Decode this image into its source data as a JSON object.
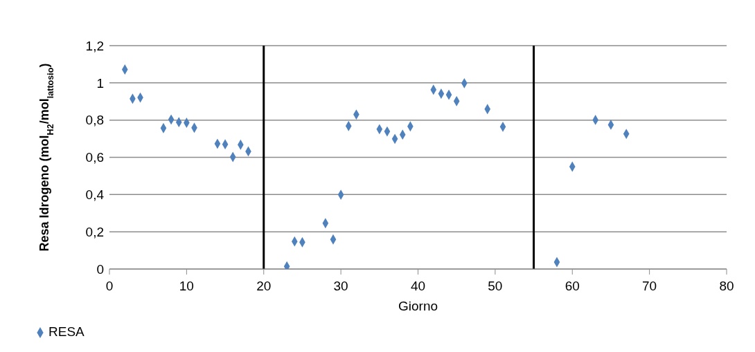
{
  "chart_data": {
    "type": "scatter",
    "xlabel": "Giorno",
    "ylabel": "Resa Idrogeno (mol$_{H2}$/mol$_{lattosio}$)",
    "series": [
      {
        "name": "RESA",
        "color": "#4f81bd",
        "x": [
          2,
          3,
          4,
          7,
          8,
          9,
          10,
          11,
          14,
          15,
          16,
          17,
          18,
          23,
          24,
          25,
          28,
          29,
          30,
          31,
          32,
          35,
          36,
          37,
          38,
          39,
          42,
          43,
          44,
          45,
          46,
          49,
          51,
          58,
          60,
          63,
          65,
          67
        ],
        "values": [
          1.072,
          0.915,
          0.921,
          0.757,
          0.803,
          0.789,
          0.786,
          0.759,
          0.673,
          0.67,
          0.602,
          0.668,
          0.632,
          0.014,
          0.148,
          0.144,
          0.246,
          0.159,
          0.399,
          0.768,
          0.83,
          0.751,
          0.739,
          0.699,
          0.722,
          0.766,
          0.963,
          0.942,
          0.936,
          0.902,
          0.998,
          0.859,
          0.764,
          0.037,
          0.55,
          0.801,
          0.775,
          0.726
        ]
      }
    ],
    "xlim": [
      0,
      80
    ],
    "xticks": [
      0,
      10,
      20,
      30,
      40,
      50,
      60,
      70,
      80
    ],
    "ylim": [
      0,
      1.2
    ],
    "yticks": [
      0,
      {
        "value": 0.2,
        "label": "0,2"
      },
      {
        "value": 0.4,
        "label": "0,4"
      },
      {
        "value": 0.6,
        "label": "0,6"
      },
      {
        "value": 0.8,
        "label": "0,8"
      },
      1,
      {
        "value": 1.2,
        "label": "1,2"
      }
    ],
    "ref_lines": [
      {
        "axis": "x",
        "value": 20,
        "color": "#000000"
      },
      {
        "axis": "x",
        "value": 55,
        "color": "#000000"
      }
    ],
    "grid": "y",
    "legend": "bottom left",
    "marker": "diamond"
  }
}
